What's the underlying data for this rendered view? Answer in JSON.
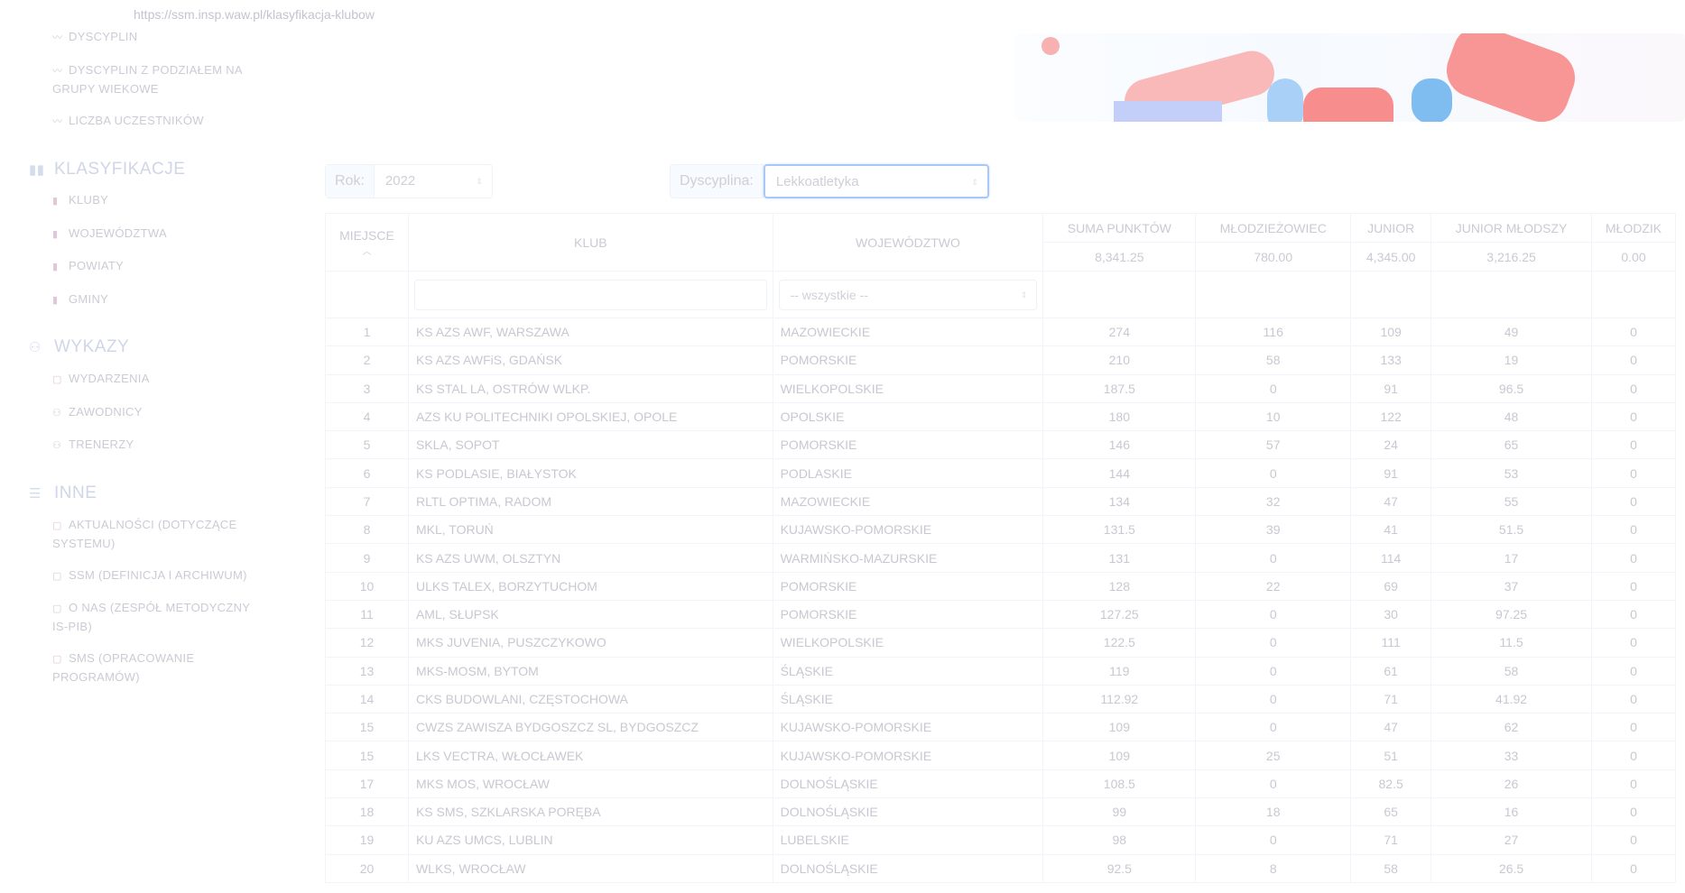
{
  "url": "https://ssm.insp.waw.pl/klasyfikacja-klubow",
  "sidebar": {
    "stats_items": [
      {
        "label": "DYSCYPLIN",
        "icon": "trend-icon"
      },
      {
        "label": "DYSCYPLIN Z PODZIAŁEM NA GRUPY WIEKOWE",
        "icon": "trend-icon"
      },
      {
        "label": "LICZBA UCZESTNIKÓW",
        "icon": "trend-icon"
      }
    ],
    "sections": [
      {
        "title": "KLASYFIKACJE",
        "icon": "bar-chart-icon",
        "items": [
          {
            "label": "KLUBY",
            "icon": "bar-chart-icon"
          },
          {
            "label": "WOJEWÓDZTWA",
            "icon": "bar-chart-icon"
          },
          {
            "label": "POWIATY",
            "icon": "bar-chart-icon"
          },
          {
            "label": "GMINY",
            "icon": "bar-chart-icon"
          }
        ]
      },
      {
        "title": "WYKAZY",
        "icon": "users-icon",
        "items": [
          {
            "label": "WYDARZENIA",
            "icon": "calendar-icon"
          },
          {
            "label": "ZAWODNICY",
            "icon": "users-icon"
          },
          {
            "label": "TRENERZY",
            "icon": "users-icon"
          }
        ]
      },
      {
        "title": "INNE",
        "icon": "list-icon",
        "items": [
          {
            "label": "AKTUALNOŚCI (DOTYCZĄCE SYSTEMU)",
            "icon": "document-icon"
          },
          {
            "label": "SSM (DEFINICJA I ARCHIWUM)",
            "icon": "document-icon"
          },
          {
            "label": "O NAS (ZESPÓŁ METODYCZNY IS-PIB)",
            "icon": "document-icon"
          },
          {
            "label": "SMS (OPRACOWANIE PROGRAMÓW)",
            "icon": "document-icon"
          }
        ]
      }
    ]
  },
  "filters": {
    "year_label": "Rok:",
    "year_value": "2022",
    "discipline_label": "Dyscyplina:",
    "discipline_value": "Lekkoatletyka",
    "region_filter": "-- wszystkie --",
    "club_filter": ""
  },
  "table": {
    "headers": {
      "place": "MIEJSCE",
      "club": "KLUB",
      "region": "WOJEWÓDZTWO",
      "sum": "SUMA PUNKTÓW",
      "u23": "MŁODZIEŻOWIEC",
      "junior": "JUNIOR",
      "junior_young": "JUNIOR MŁODSZY",
      "youth": "MŁODZIK"
    },
    "totals": {
      "sum": "8,341.25",
      "u23": "780.00",
      "junior": "4,345.00",
      "junior_young": "3,216.25",
      "youth": "0.00"
    },
    "rows": [
      [
        "1",
        "KS AZS AWF, WARSZAWA",
        "MAZOWIECKIE",
        "274",
        "116",
        "109",
        "49",
        "0"
      ],
      [
        "2",
        "KS AZS AWFiS, GDAŃSK",
        "POMORSKIE",
        "210",
        "58",
        "133",
        "19",
        "0"
      ],
      [
        "3",
        "KS STAL LA, OSTRÓW WLKP.",
        "WIELKOPOLSKIE",
        "187.5",
        "0",
        "91",
        "96.5",
        "0"
      ],
      [
        "4",
        "AZS KU POLITECHNIKI OPOLSKIEJ, OPOLE",
        "OPOLSKIE",
        "180",
        "10",
        "122",
        "48",
        "0"
      ],
      [
        "5",
        "SKLA, SOPOT",
        "POMORSKIE",
        "146",
        "57",
        "24",
        "65",
        "0"
      ],
      [
        "6",
        "KS PODLASIE, BIAŁYSTOK",
        "PODLASKIE",
        "144",
        "0",
        "91",
        "53",
        "0"
      ],
      [
        "7",
        "RLTL OPTIMA, RADOM",
        "MAZOWIECKIE",
        "134",
        "32",
        "47",
        "55",
        "0"
      ],
      [
        "8",
        "MKL, TORUŃ",
        "KUJAWSKO-POMORSKIE",
        "131.5",
        "39",
        "41",
        "51.5",
        "0"
      ],
      [
        "9",
        "KS AZS UWM, OLSZTYN",
        "WARMIŃSKO-MAZURSKIE",
        "131",
        "0",
        "114",
        "17",
        "0"
      ],
      [
        "10",
        "ULKS TALEX, BORZYTUCHOM",
        "POMORSKIE",
        "128",
        "22",
        "69",
        "37",
        "0"
      ],
      [
        "11",
        "AML, SŁUPSK",
        "POMORSKIE",
        "127.25",
        "0",
        "30",
        "97.25",
        "0"
      ],
      [
        "12",
        "MKS JUVENIA, PUSZCZYKOWO",
        "WIELKOPOLSKIE",
        "122.5",
        "0",
        "111",
        "11.5",
        "0"
      ],
      [
        "13",
        "MKS-MOSM, BYTOM",
        "ŚLĄSKIE",
        "119",
        "0",
        "61",
        "58",
        "0"
      ],
      [
        "14",
        "CKS BUDOWLANI, CZĘSTOCHOWA",
        "ŚLĄSKIE",
        "112.92",
        "0",
        "71",
        "41.92",
        "0"
      ],
      [
        "15",
        "CWZS ZAWISZA BYDGOSZCZ SL, BYDGOSZCZ",
        "KUJAWSKO-POMORSKIE",
        "109",
        "0",
        "47",
        "62",
        "0"
      ],
      [
        "15",
        "LKS VECTRA, WŁOCŁAWEK",
        "KUJAWSKO-POMORSKIE",
        "109",
        "25",
        "51",
        "33",
        "0"
      ],
      [
        "17",
        "MKS MOS, WROCŁAW",
        "DOLNOŚLĄSKIE",
        "108.5",
        "0",
        "82.5",
        "26",
        "0"
      ],
      [
        "18",
        "KS SMS, SZKLARSKA PORĘBA",
        "DOLNOŚLĄSKIE",
        "99",
        "18",
        "65",
        "16",
        "0"
      ],
      [
        "19",
        "KU AZS UMCS, LUBLIN",
        "LUBELSKIE",
        "98",
        "0",
        "71",
        "27",
        "0"
      ],
      [
        "20",
        "WLKS, WROCŁAW",
        "DOLNOŚLĄSKIE",
        "92.5",
        "8",
        "58",
        "26.5",
        "0"
      ]
    ]
  },
  "colors": {
    "focus": "#a9c8f6",
    "text": "#c8c8d2"
  }
}
